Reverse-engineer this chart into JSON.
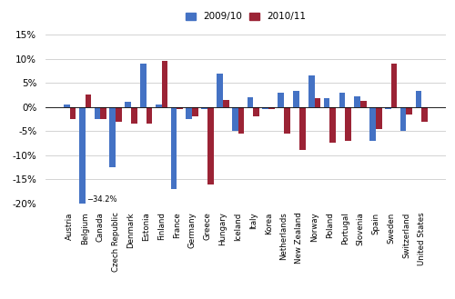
{
  "categories": [
    "Austria",
    "Belgium",
    "Canada",
    "Czech Republic",
    "Denmark",
    "Estonia",
    "Finland",
    "France",
    "Germany",
    "Greece",
    "Hungary",
    "Iceland",
    "Italy",
    "Korea",
    "Netherlands",
    "New Zealand",
    "Norway",
    "Poland",
    "Portugal",
    "Slovenia",
    "Spain",
    "Sweden",
    "Switzerland",
    "United States"
  ],
  "values_2009": [
    0.5,
    -34.2,
    -2.5,
    -12.5,
    1.0,
    9.0,
    0.5,
    -17.0,
    -2.5,
    -0.5,
    7.0,
    -5.0,
    2.0,
    -0.5,
    3.0,
    3.3,
    6.5,
    1.8,
    3.0,
    2.2,
    -7.0,
    -0.5,
    -5.0,
    3.3
  ],
  "values_2010": [
    -2.5,
    2.5,
    -2.5,
    -3.0,
    -3.5,
    -3.5,
    9.5,
    -0.5,
    -2.0,
    -16.0,
    1.5,
    -5.5,
    -2.0,
    -0.5,
    -5.5,
    -9.0,
    1.8,
    -7.5,
    -7.0,
    1.2,
    -4.5,
    9.0,
    -1.5,
    -3.0
  ],
  "color_2009": "#4472C4",
  "color_2010": "#9B2335",
  "ylim": [
    -20,
    16
  ],
  "yticks": [
    -20,
    -15,
    -10,
    -5,
    0,
    5,
    10,
    15
  ],
  "ytick_labels": [
    "-20%",
    "-15%",
    "-10%",
    "-5%",
    "0%",
    "5%",
    "10%",
    "15%"
  ],
  "annotation_text": "−34.2%",
  "legend_labels": [
    "2009/10",
    "2010/11"
  ],
  "bar_width": 0.4,
  "background_color": "#ffffff",
  "grid_color": "#cccccc"
}
